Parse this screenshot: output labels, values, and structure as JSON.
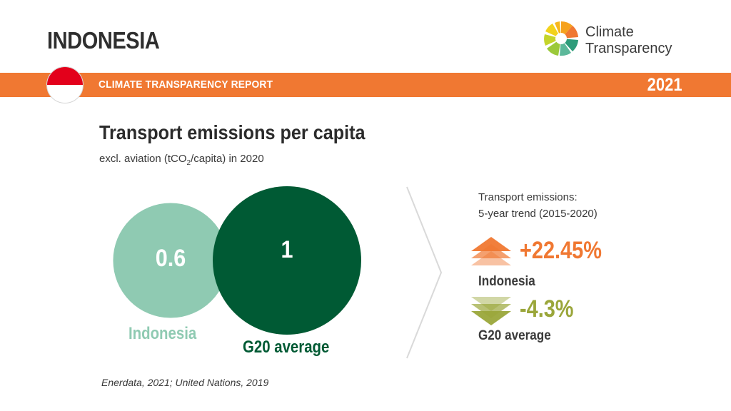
{
  "header": {
    "country": "INDONESIA",
    "logo_line1": "Climate",
    "logo_line2": "Transparency",
    "banner_label": "CLIMATE TRANSPARENCY REPORT",
    "year": "2021"
  },
  "colors": {
    "banner": "#f07832",
    "indonesia_bubble": "#8fcab2",
    "g20_bubble": "#005a34",
    "increase": "#f07832",
    "decrease": "#9aa63a",
    "flag_red": "#e3001b"
  },
  "chart_data": {
    "type": "bubble",
    "title": "Transport emissions per capita",
    "subtitle_pre": "excl. aviation (tCO",
    "subtitle_sub": "2",
    "subtitle_post": "/capita) in 2020",
    "series": [
      {
        "name": "Indonesia",
        "value": 0.6,
        "value_label": "0.6",
        "color": "#8fcab2"
      },
      {
        "name": "G20 average",
        "value": 1,
        "value_label": "1",
        "color": "#005a34"
      }
    ]
  },
  "trend": {
    "title_line1": "Transport emissions:",
    "title_line2": "5-year trend (2015-2020)",
    "items": [
      {
        "name": "Indonesia",
        "value": "+22.45%",
        "direction": "up",
        "color": "#f07832"
      },
      {
        "name": "G20 average",
        "value": "-4.3%",
        "direction": "down",
        "color": "#9aa63a"
      }
    ]
  },
  "source": "Enerdata, 2021; United Nations, 2019"
}
